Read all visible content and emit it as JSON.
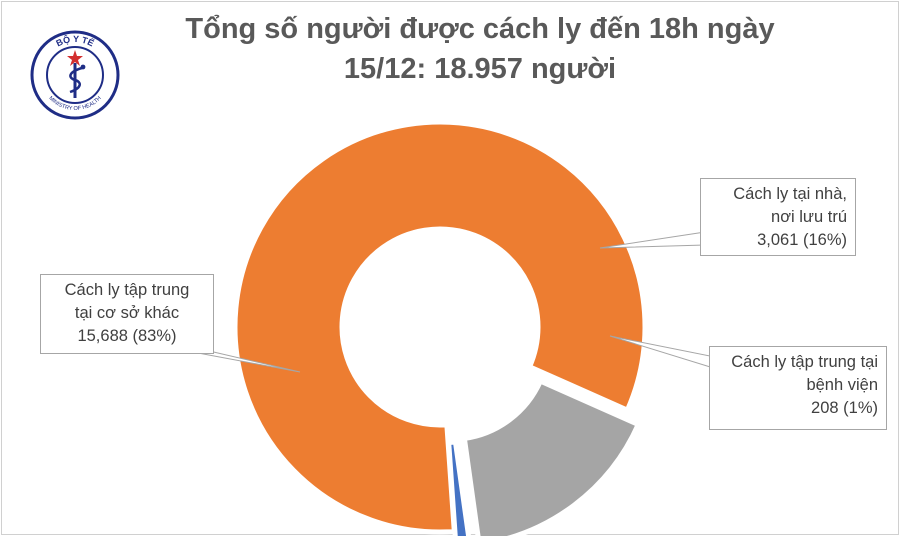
{
  "title_lines": [
    "Tổng số người được cách ly đến 18h ngày",
    "15/12: 18.957 người"
  ],
  "logo": {
    "top_text": "BỘ Y TẾ",
    "bottom_text": "MINISTRY OF HEALTH",
    "icon": "caduceus-icon",
    "colors": {
      "ring": "#1f2d86",
      "star": "#d32f2f"
    }
  },
  "chart_data": {
    "type": "pie",
    "style": "donut",
    "title": "Tổng số người được cách ly đến 18h ngày 15/12: 18.957 người",
    "slices": [
      {
        "label": "Cách ly tập trung tại cơ sở khác",
        "value": 15688,
        "percent": 83,
        "color": "#ed7d31",
        "callout_lines": [
          "Cách ly tập trung",
          "tại cơ sở khác",
          "15,688 (83%)"
        ]
      },
      {
        "label": "Cách ly tại nhà, nơi lưu trú",
        "value": 3061,
        "percent": 16,
        "color": "#a5a5a5",
        "callout_lines": [
          "Cách ly tại nhà,",
          "nơi lưu trú",
          "3,061 (16%)"
        ]
      },
      {
        "label": "Cách ly tập trung tại bệnh viện",
        "value": 208,
        "percent": 1,
        "color": "#4472c4",
        "callout_lines": [
          "Cách ly tập trung tại",
          "bệnh viện",
          "208 (1%)"
        ]
      }
    ]
  }
}
